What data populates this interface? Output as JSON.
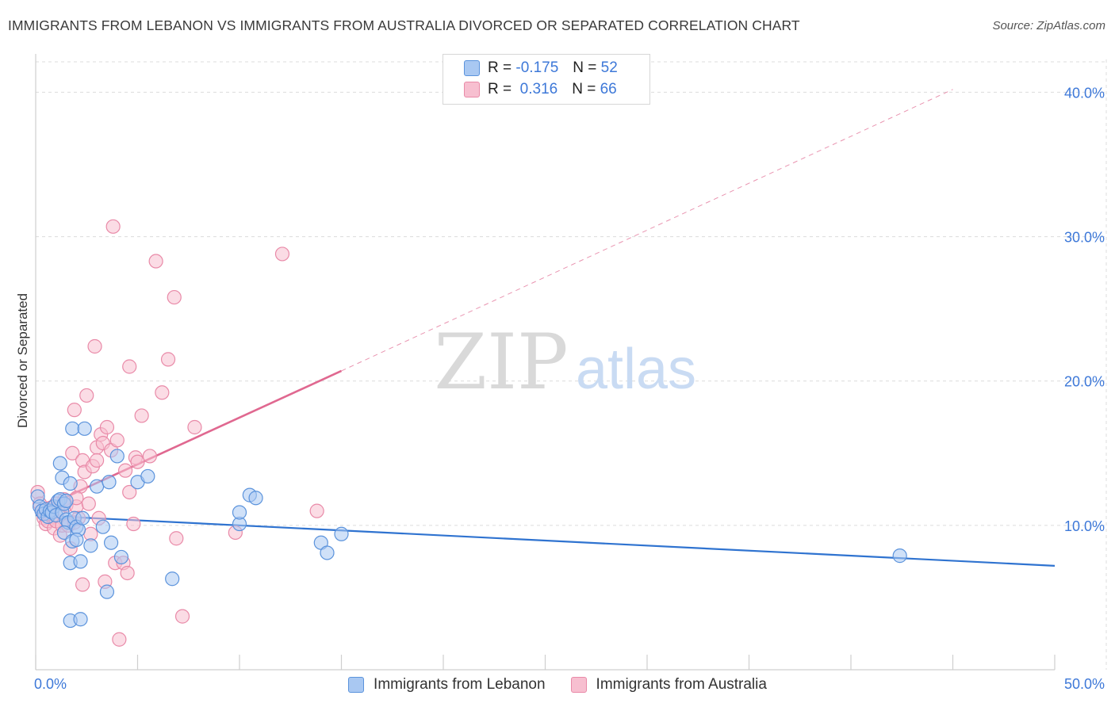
{
  "header": {
    "title": "IMMIGRANTS FROM LEBANON VS IMMIGRANTS FROM AUSTRALIA DIVORCED OR SEPARATED CORRELATION CHART",
    "source": "Source: ZipAtlas.com"
  },
  "watermark": {
    "zip": "ZIP",
    "atlas": "atlas"
  },
  "legend": {
    "rows": [
      {
        "r_label": "R =",
        "r_value": "-0.175",
        "n_label": "N =",
        "n_value": "52"
      },
      {
        "r_label": "R =",
        "r_value": " 0.316",
        "n_label": "N =",
        "n_value": "66"
      }
    ]
  },
  "colors": {
    "lebanon_fill": "#a9c8f2",
    "lebanon_stroke": "#5b93dc",
    "lebanon_line": "#2f73d0",
    "australia_fill": "#f7bfd0",
    "australia_stroke": "#e98aa8",
    "australia_line": "#e06890",
    "tick_text": "#3d78d8",
    "grid": "#dcdcdc"
  },
  "chart_data": {
    "type": "scatter",
    "title": "IMMIGRANTS FROM LEBANON VS IMMIGRANTS FROM AUSTRALIA DIVORCED OR SEPARATED CORRELATION CHART",
    "xlabel": "",
    "ylabel": "Divorced or Separated",
    "xlim": [
      0,
      50
    ],
    "ylim": [
      0,
      42
    ],
    "x_tick_labels": [
      "0.0%",
      "50.0%"
    ],
    "y_ticks": [
      10,
      20,
      30,
      40
    ],
    "y_tick_labels": [
      "10.0%",
      "20.0%",
      "30.0%",
      "40.0%"
    ],
    "grid": true,
    "legend_placement": "bottom",
    "series": [
      {
        "name": "Immigrants from Lebanon",
        "r": -0.175,
        "n": 52,
        "trend": {
          "x0": 0,
          "y0": 10.7,
          "x1": 50,
          "y1": 7.2,
          "dashed_from": null
        },
        "points": [
          [
            0.1,
            12.0
          ],
          [
            0.2,
            11.3
          ],
          [
            0.3,
            11.0
          ],
          [
            0.4,
            10.8
          ],
          [
            0.5,
            11.1
          ],
          [
            0.6,
            10.6
          ],
          [
            0.7,
            11.0
          ],
          [
            0.8,
            10.9
          ],
          [
            0.9,
            11.3
          ],
          [
            1.0,
            10.7
          ],
          [
            1.1,
            11.7
          ],
          [
            1.2,
            11.8
          ],
          [
            1.3,
            10.9
          ],
          [
            1.4,
            11.5
          ],
          [
            1.5,
            10.4
          ],
          [
            1.6,
            10.2
          ],
          [
            1.2,
            14.3
          ],
          [
            1.3,
            13.3
          ],
          [
            1.4,
            9.5
          ],
          [
            1.5,
            11.7
          ],
          [
            1.7,
            7.4
          ],
          [
            1.8,
            8.9
          ],
          [
            1.7,
            12.9
          ],
          [
            1.8,
            16.7
          ],
          [
            1.9,
            10.5
          ],
          [
            2.0,
            9.9
          ],
          [
            2.1,
            9.7
          ],
          [
            2.0,
            9.0
          ],
          [
            2.2,
            7.5
          ],
          [
            2.3,
            10.5
          ],
          [
            2.4,
            16.7
          ],
          [
            1.7,
            3.4
          ],
          [
            2.2,
            3.5
          ],
          [
            2.7,
            8.6
          ],
          [
            3.0,
            12.7
          ],
          [
            3.3,
            9.9
          ],
          [
            3.5,
            5.4
          ],
          [
            3.6,
            13.0
          ],
          [
            3.7,
            8.8
          ],
          [
            4.0,
            14.8
          ],
          [
            4.2,
            7.8
          ],
          [
            5.0,
            13.0
          ],
          [
            5.5,
            13.4
          ],
          [
            6.7,
            6.3
          ],
          [
            10.0,
            10.1
          ],
          [
            10.0,
            10.9
          ],
          [
            10.5,
            12.1
          ],
          [
            10.8,
            11.9
          ],
          [
            14.0,
            8.8
          ],
          [
            14.3,
            8.1
          ],
          [
            15.0,
            9.4
          ],
          [
            42.4,
            7.9
          ]
        ]
      },
      {
        "name": "Immigrants from Australia",
        "r": 0.316,
        "n": 66,
        "trend": {
          "x0": 0,
          "y0": 11.0,
          "x1": 15,
          "y1": 20.7,
          "dashed_to": [
            45,
            40.2
          ]
        },
        "points": [
          [
            0.1,
            12.3
          ],
          [
            0.2,
            11.5
          ],
          [
            0.3,
            11.0
          ],
          [
            0.4,
            10.5
          ],
          [
            0.5,
            10.1
          ],
          [
            0.6,
            10.3
          ],
          [
            0.7,
            11.2
          ],
          [
            0.8,
            10.6
          ],
          [
            0.9,
            9.8
          ],
          [
            1.0,
            10.3
          ],
          [
            1.1,
            11.0
          ],
          [
            1.2,
            9.3
          ],
          [
            1.3,
            10.0
          ],
          [
            1.4,
            11.8
          ],
          [
            1.5,
            11.4
          ],
          [
            1.6,
            10.0
          ],
          [
            1.7,
            8.4
          ],
          [
            1.8,
            15.0
          ],
          [
            1.9,
            18.0
          ],
          [
            1.9,
            10.2
          ],
          [
            2.0,
            11.3
          ],
          [
            2.1,
            10.5
          ],
          [
            2.2,
            12.7
          ],
          [
            2.3,
            14.5
          ],
          [
            2.3,
            5.9
          ],
          [
            2.4,
            13.7
          ],
          [
            2.5,
            19.0
          ],
          [
            2.6,
            11.5
          ],
          [
            2.7,
            9.4
          ],
          [
            2.8,
            14.1
          ],
          [
            2.9,
            22.4
          ],
          [
            3.0,
            15.4
          ],
          [
            3.0,
            14.5
          ],
          [
            3.1,
            10.5
          ],
          [
            3.2,
            16.3
          ],
          [
            3.3,
            15.7
          ],
          [
            3.4,
            6.1
          ],
          [
            3.5,
            16.8
          ],
          [
            3.7,
            15.2
          ],
          [
            3.8,
            30.7
          ],
          [
            3.9,
            7.4
          ],
          [
            4.0,
            15.9
          ],
          [
            4.1,
            2.1
          ],
          [
            4.3,
            7.4
          ],
          [
            4.4,
            13.8
          ],
          [
            4.5,
            6.7
          ],
          [
            4.6,
            12.3
          ],
          [
            4.6,
            21.0
          ],
          [
            4.8,
            10.1
          ],
          [
            4.9,
            14.7
          ],
          [
            5.0,
            14.4
          ],
          [
            5.2,
            17.6
          ],
          [
            5.6,
            14.8
          ],
          [
            5.9,
            28.3
          ],
          [
            6.2,
            19.2
          ],
          [
            6.5,
            21.5
          ],
          [
            6.8,
            25.8
          ],
          [
            6.9,
            9.1
          ],
          [
            7.2,
            3.7
          ],
          [
            7.8,
            16.8
          ],
          [
            9.8,
            9.5
          ],
          [
            12.1,
            28.8
          ],
          [
            13.8,
            11.0
          ],
          [
            0.6,
            10.8
          ],
          [
            1.0,
            11.5
          ],
          [
            2.0,
            11.9
          ]
        ]
      }
    ]
  }
}
